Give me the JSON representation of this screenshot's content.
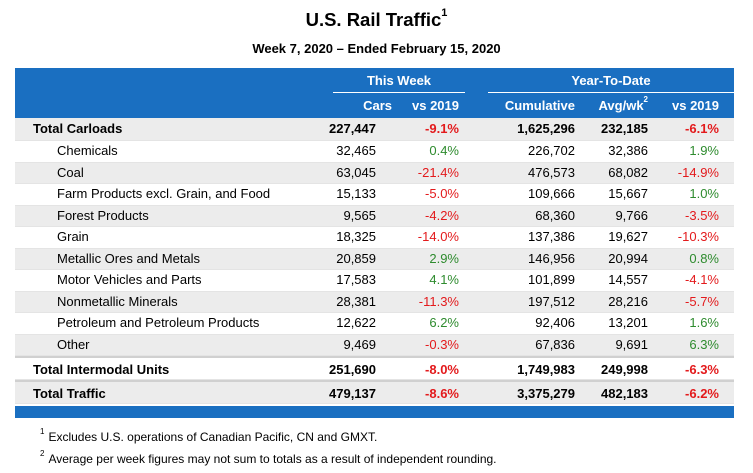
{
  "title": "U.S. Rail Traffic",
  "title_note": "1",
  "subtitle": "Week 7, 2020 – Ended February 15, 2020",
  "groups": {
    "this_week": "This Week",
    "ytd": "Year-To-Date"
  },
  "columns": {
    "cars": "Cars",
    "vs2019a": "vs 2019",
    "cumulative": "Cumulative",
    "avgwk": "Avg/wk",
    "avgwk_note": "2",
    "vs2019b": "vs 2019"
  },
  "rows": [
    {
      "name": "Total Carloads",
      "cars": "227,447",
      "vs_week": "-9.1%",
      "cum": "1,625,296",
      "avg": "232,185",
      "vs_ytd": "-6.1%"
    },
    {
      "name": "Chemicals",
      "cars": "32,465",
      "vs_week": "0.4%",
      "cum": "226,702",
      "avg": "32,386",
      "vs_ytd": "1.9%"
    },
    {
      "name": "Coal",
      "cars": "63,045",
      "vs_week": "-21.4%",
      "cum": "476,573",
      "avg": "68,082",
      "vs_ytd": "-14.9%"
    },
    {
      "name": "Farm Products excl. Grain, and Food",
      "cars": "15,133",
      "vs_week": "-5.0%",
      "cum": "109,666",
      "avg": "15,667",
      "vs_ytd": "1.0%"
    },
    {
      "name": "Forest Products",
      "cars": "9,565",
      "vs_week": "-4.2%",
      "cum": "68,360",
      "avg": "9,766",
      "vs_ytd": "-3.5%"
    },
    {
      "name": "Grain",
      "cars": "18,325",
      "vs_week": "-14.0%",
      "cum": "137,386",
      "avg": "19,627",
      "vs_ytd": "-10.3%"
    },
    {
      "name": "Metallic Ores and Metals",
      "cars": "20,859",
      "vs_week": "2.9%",
      "cum": "146,956",
      "avg": "20,994",
      "vs_ytd": "0.8%"
    },
    {
      "name": "Motor Vehicles and Parts",
      "cars": "17,583",
      "vs_week": "4.1%",
      "cum": "101,899",
      "avg": "14,557",
      "vs_ytd": "-4.1%"
    },
    {
      "name": "Nonmetallic Minerals",
      "cars": "28,381",
      "vs_week": "-11.3%",
      "cum": "197,512",
      "avg": "28,216",
      "vs_ytd": "-5.7%"
    },
    {
      "name": "Petroleum and Petroleum Products",
      "cars": "12,622",
      "vs_week": "6.2%",
      "cum": "92,406",
      "avg": "13,201",
      "vs_ytd": "1.6%"
    },
    {
      "name": "Other",
      "cars": "9,469",
      "vs_week": "-0.3%",
      "cum": "67,836",
      "avg": "9,691",
      "vs_ytd": "6.3%"
    },
    {
      "name": "Total Intermodal Units",
      "cars": "251,690",
      "vs_week": "-8.0%",
      "cum": "1,749,983",
      "avg": "249,998",
      "vs_ytd": "-6.3%"
    },
    {
      "name": "Total Traffic",
      "cars": "479,137",
      "vs_week": "-8.6%",
      "cum": "3,375,279",
      "avg": "482,183",
      "vs_ytd": "-6.2%"
    }
  ],
  "footnotes": [
    {
      "mark": "1",
      "text": "Excludes U.S. operations of Canadian Pacific, CN and GMXT."
    },
    {
      "mark": "2",
      "text": "Average per week figures may not sum to totals as a result of independent rounding."
    }
  ],
  "colors": {
    "header_bg": "#1a6fc1",
    "negative": "#e31a1c",
    "positive": "#2e8b2e",
    "row_alt": "#ececec"
  }
}
